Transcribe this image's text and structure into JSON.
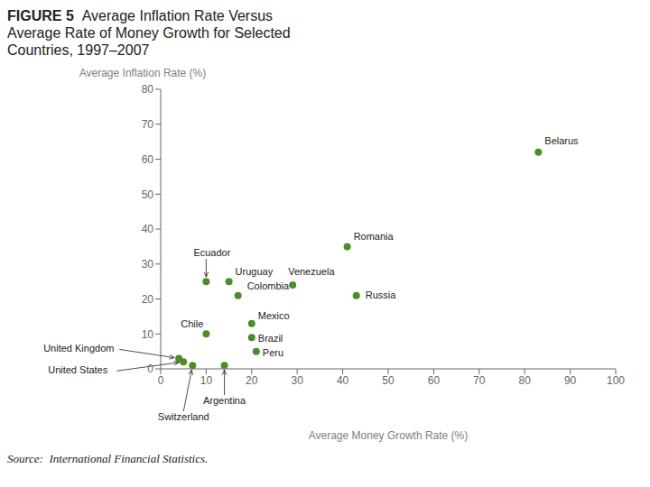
{
  "chart_data": {
    "type": "scatter",
    "title": "FIGURE 5",
    "subtitle": "Average Inflation Rate Versus\nAverage Rate of Money Growth for Selected\nCountries, 1997–2007",
    "xlabel": "Average Money Growth Rate (%)",
    "ylabel": "Average Inflation Rate (%)",
    "annotations": [
      "Source:  International Financial Statistics."
    ],
    "x": [
      83,
      41,
      10,
      15,
      29,
      17,
      43,
      10,
      20,
      20,
      21,
      4,
      5,
      14,
      7
    ],
    "values": [
      62,
      35,
      25,
      25,
      24,
      21,
      21,
      10,
      13,
      9,
      5,
      3,
      2,
      1,
      1
    ],
    "labels": [
      "Belarus",
      "Romania",
      "Ecuador",
      "Uruguay",
      "Venezuela",
      "Colombia",
      "Russia",
      "Chile",
      "Mexico",
      "Brazil",
      "Peru",
      "United Kingdom",
      "United States",
      "Argentina",
      "Switzerland"
    ],
    "color": "#4d8c2a",
    "xlim": [
      0,
      100
    ],
    "ylim": [
      0,
      80
    ],
    "xticks": [
      0,
      10,
      20,
      30,
      40,
      50,
      60,
      70,
      80,
      90,
      100
    ],
    "yticks": [
      0,
      10,
      20,
      30,
      40,
      50,
      60,
      70,
      80
    ],
    "grid": false
  }
}
